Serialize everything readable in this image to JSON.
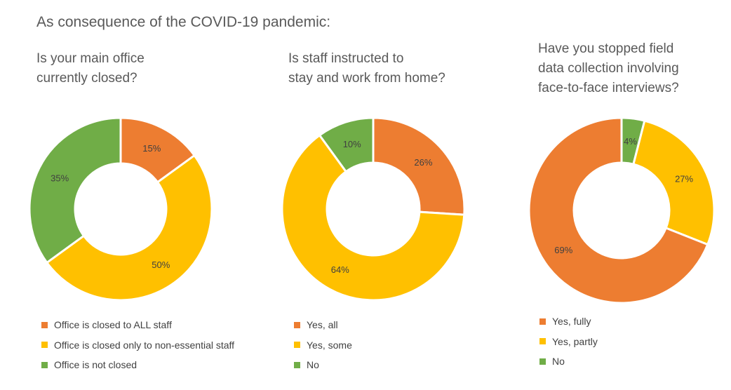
{
  "title": "As consequence of the COVID-19 pandemic:",
  "colors": {
    "orange": "#ED7D31",
    "yellow": "#FFC000",
    "green": "#70AD47"
  },
  "chart_data": [
    {
      "type": "pie",
      "variant": "donut",
      "title": "Is your main office\ncurrently closed?",
      "slices": [
        {
          "label": "Office is closed to ALL staff",
          "value": 15,
          "color": "#ED7D31"
        },
        {
          "label": "Office is closed only to non-essential staff",
          "value": 50,
          "color": "#FFC000"
        },
        {
          "label": "Office is not closed",
          "value": 35,
          "color": "#70AD47"
        }
      ],
      "data_labels": [
        "15%",
        "50%",
        "35%"
      ],
      "legend": "bottom"
    },
    {
      "type": "pie",
      "variant": "donut",
      "title": "Is staff instructed to\nstay and work from home?",
      "slices": [
        {
          "label": "Yes, all",
          "value": 26,
          "color": "#ED7D31"
        },
        {
          "label": "Yes, some",
          "value": 64,
          "color": "#FFC000"
        },
        {
          "label": "No",
          "value": 10,
          "color": "#70AD47"
        }
      ],
      "data_labels": [
        "26%",
        "64%",
        "10%"
      ],
      "legend": "bottom"
    },
    {
      "type": "pie",
      "variant": "donut",
      "title": "Have you stopped field\ndata collection involving\nface-to-face interviews?",
      "slices": [
        {
          "label": "Yes, fully",
          "value": 69,
          "color": "#ED7D31"
        },
        {
          "label": "Yes, partly",
          "value": 27,
          "color": "#FFC000"
        },
        {
          "label": "No",
          "value": 4,
          "color": "#70AD47"
        }
      ],
      "data_labels": [
        "69%",
        "27%",
        "4%"
      ],
      "draw_order": [
        2,
        1,
        0
      ],
      "legend": "bottom"
    }
  ]
}
